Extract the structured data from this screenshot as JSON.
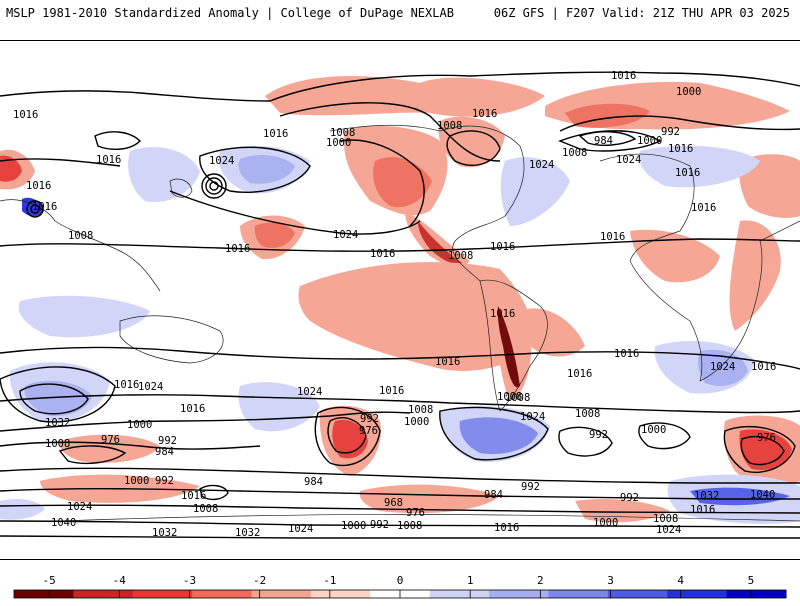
{
  "header": {
    "title_left": "MSLP 1981-2010 Standardized Anomaly | College of DuPage NEXLAB",
    "title_right": "06Z GFS | F207 Valid: 21Z THU APR 03 2025"
  },
  "colorbar": {
    "ticks": [
      "-5",
      "-4",
      "-3",
      "-2",
      "-1",
      "0",
      "1",
      "2",
      "3",
      "4",
      "5"
    ],
    "range": [
      -5.5,
      5.5
    ],
    "colors": [
      "#6b0000",
      "#c62828",
      "#e53935",
      "#ef6c5a",
      "#f6a290",
      "#fbd3c8",
      "#ffffff",
      "#cfd3f7",
      "#a6aef2",
      "#7c86ec",
      "#4e5be6",
      "#2430dc",
      "#0000c8"
    ]
  },
  "contour_labels": {
    "l1016a": "1016",
    "l1000a": "1000",
    "l1016b": "1016",
    "l1016c": "1016",
    "l1008a": "1008",
    "l1000b": "1000",
    "l1008b": "1008",
    "l1016d": "1016",
    "l992a": "992",
    "l984a": "984",
    "l1000c": "1000",
    "l1008c": "1008",
    "l1016e": "1016",
    "l1024a": "1024",
    "l1024b": "1024",
    "l1016f": "1016",
    "l1016g": "1016",
    "l1016h": "1016",
    "l1024c": "1024",
    "l1016i": "1016",
    "l1016j": "1016",
    "l1016k": "1016",
    "l1008d": "1008",
    "l1016l": "1016",
    "l1008e": "1008",
    "l1016m": "1016",
    "l1016n": "1016",
    "l1024d": "1024",
    "l1016o": "1016",
    "l1016p": "1016",
    "l1016q": "1016",
    "l1016r": "1016",
    "l1024e": "1024",
    "l1016s": "1016",
    "l1032a": "1032",
    "l1016t": "1016",
    "l1008f": "1008",
    "l992b": "992",
    "l976a": "976",
    "l1000d": "1000",
    "l1008g": "1008",
    "l1024f": "1024",
    "l1008h": "1008",
    "l976b": "976",
    "l992c": "992",
    "l984b": "984",
    "l1000e": "1000",
    "l1008i": "1008",
    "l992d": "992",
    "l1000f": "1000",
    "l976c": "976",
    "l1000g": "1000",
    "l992e": "992",
    "l1016u": "1016",
    "l1008j": "1008",
    "l984c": "984",
    "l968a": "968",
    "l976d": "976",
    "l984d": "984",
    "l992f": "992",
    "l992g": "992",
    "l1032b": "1032",
    "l1040a": "1040",
    "l1008k": "1008",
    "l1016v": "1016",
    "l1024g": "1024",
    "l1040b": "1040",
    "l1032c": "1032",
    "l1032d": "1032",
    "l1024h": "1024",
    "l1000h": "1000",
    "l992h": "992",
    "l1008l": "1008",
    "l1016w": "1016",
    "l1000i": "1000",
    "l1008m": "1008",
    "l1024i": "1024"
  }
}
